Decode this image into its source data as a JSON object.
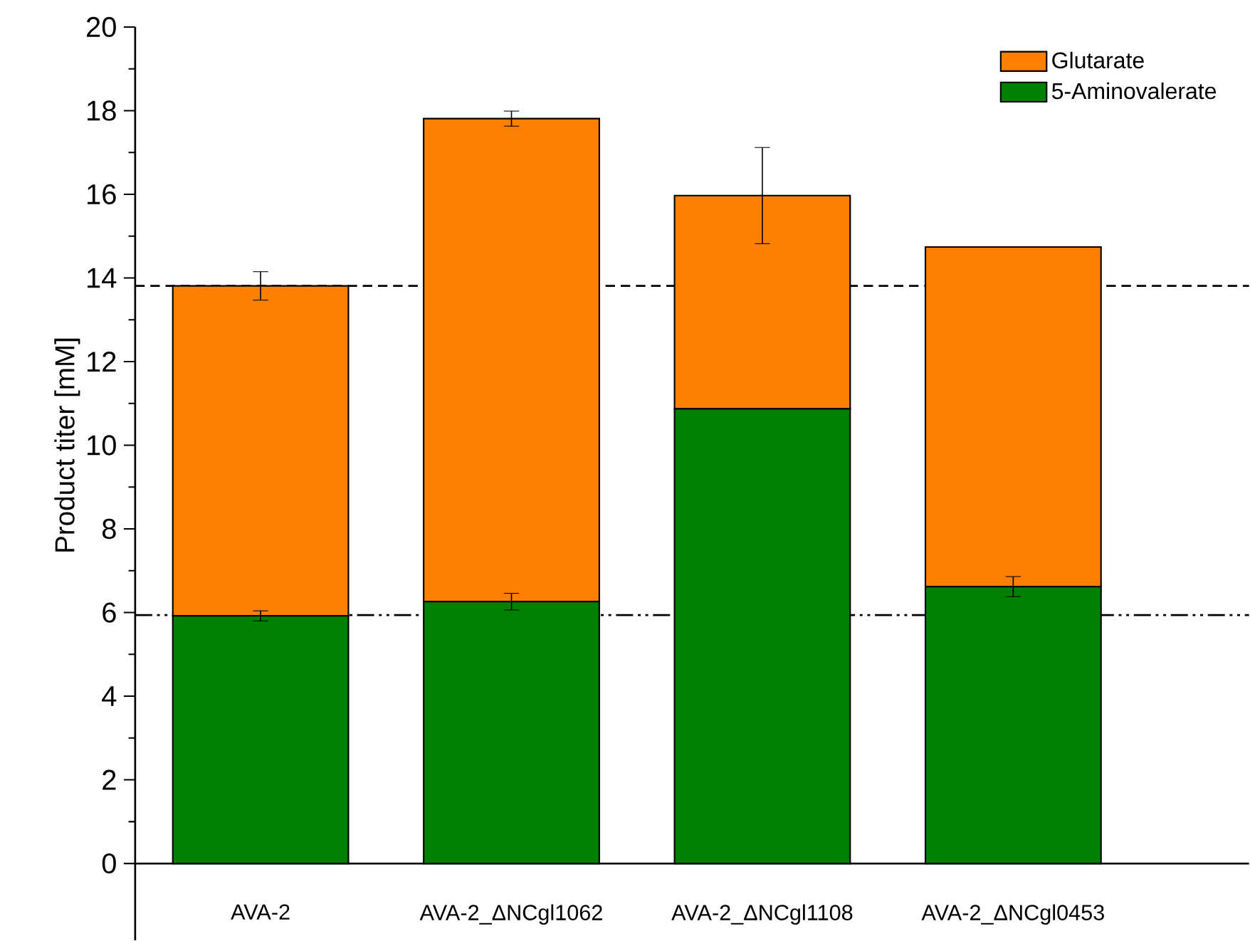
{
  "chart_data": {
    "type": "bar",
    "stacked": true,
    "ylabel": "Product titer [mM]",
    "categories": [
      "AVA-2",
      "AVA-2_ΔNCgl1062",
      "AVA-2_ΔNCgl1108",
      "AVA-2_ΔNCgl0453"
    ],
    "series": [
      {
        "name": "5-Aminovalerate",
        "color": "#008000",
        "values": [
          5.92,
          6.26,
          10.87,
          6.62
        ],
        "errors": [
          0.12,
          0.2,
          null,
          0.24
        ]
      },
      {
        "name": "Glutarate",
        "color": "#ff8000",
        "values": [
          7.89,
          11.55,
          5.1,
          8.12
        ],
        "errors": [
          0.34,
          0.18,
          1.15,
          null
        ]
      }
    ],
    "ylim": [
      0,
      20
    ],
    "yticks": [
      0,
      2,
      4,
      6,
      8,
      10,
      12,
      14,
      16,
      18,
      20
    ],
    "ref_lines": [
      {
        "axis": "y",
        "value": 13.81,
        "line_style": "dashed",
        "color": "#000000"
      },
      {
        "axis": "y",
        "value": 5.94,
        "line_style": "dashdotdotted",
        "color": "#000000"
      }
    ],
    "legend": "top right",
    "grid": false
  }
}
